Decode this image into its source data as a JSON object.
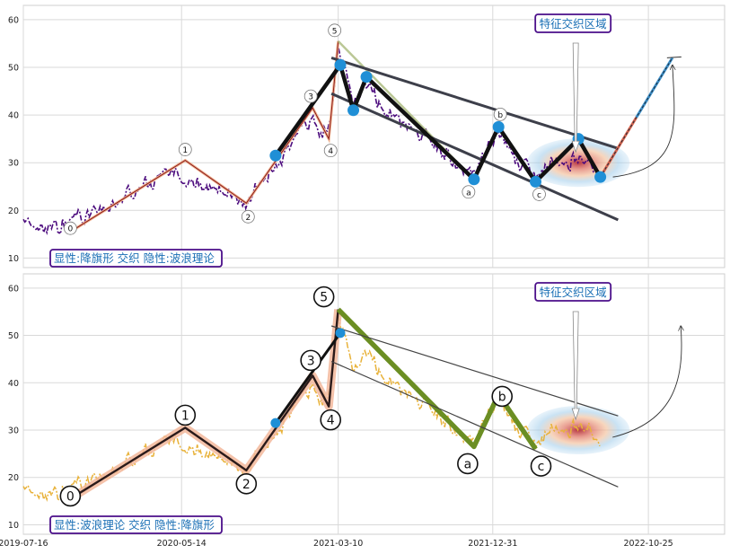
{
  "chart_data": [
    {
      "type": "line",
      "xlim": [
        "2019-07-16",
        "2023-03-20"
      ],
      "ylim": [
        8,
        63
      ],
      "yticks": [
        10,
        20,
        30,
        40,
        50,
        60
      ],
      "grid": true,
      "annotation_text": "显性:降旗形 交织 隐性:波浪理论",
      "region_label": "特征交织区域",
      "wave_points": [
        {
          "label": "0",
          "x": "2019-10-14",
          "y": 15.5
        },
        {
          "label": "1",
          "x": "2020-05-21",
          "y": 30.5
        },
        {
          "label": "2",
          "x": "2020-09-15",
          "y": 21.5
        },
        {
          "label": "3",
          "x": "2021-01-20",
          "y": 41.5
        },
        {
          "label": "4",
          "x": "2021-02-20",
          "y": 35
        },
        {
          "label": "5",
          "x": "2021-03-10",
          "y": 55.5
        }
      ],
      "corrective_points": [
        {
          "label": "a",
          "x": "2021-11-25",
          "y": 26.5
        },
        {
          "label": "b",
          "x": "2022-01-11",
          "y": 37.5
        },
        {
          "label": "c",
          "x": "2022-03-23",
          "y": 26
        }
      ],
      "flag_path": [
        {
          "x": "2020-11-10",
          "y": 31.5
        },
        {
          "x": "2021-03-14",
          "y": 50.5
        },
        {
          "x": "2021-04-08",
          "y": 41
        },
        {
          "x": "2021-05-03",
          "y": 48
        },
        {
          "x": "2021-11-25",
          "y": 26.5
        },
        {
          "x": "2022-01-11",
          "y": 37.5
        },
        {
          "x": "2022-03-23",
          "y": 26
        },
        {
          "x": "2022-06-13",
          "y": 35
        },
        {
          "x": "2022-07-25",
          "y": 27
        }
      ],
      "flag_upper_line": [
        {
          "x": "2021-02-25",
          "y": 52
        },
        {
          "x": "2022-08-28",
          "y": 33
        }
      ],
      "flag_lower_line": [
        {
          "x": "2021-02-25",
          "y": 44.5
        },
        {
          "x": "2022-08-28",
          "y": 18
        }
      ],
      "breakout_line": [
        {
          "x": "2022-07-25",
          "y": 27
        },
        {
          "x": "2022-12-10",
          "y": 52
        }
      ],
      "region_center": {
        "x": "2022-06-13",
        "y": 30
      }
    },
    {
      "type": "line",
      "xlim": [
        "2019-07-16",
        "2023-03-20"
      ],
      "ylim": [
        8,
        63
      ],
      "yticks": [
        10,
        20,
        30,
        40,
        50,
        60
      ],
      "xticks": [
        "2019-07-16",
        "2020-05-14",
        "2021-03-10",
        "2021-12-31",
        "2022-10-25"
      ],
      "grid": true,
      "annotation_text": "显性:波浪理论 交织 隐性:降旗形",
      "region_label": "特征交织区域",
      "wave_points": [
        {
          "label": "0",
          "x": "2019-10-14",
          "y": 15.5
        },
        {
          "label": "1",
          "x": "2020-05-21",
          "y": 30.5
        },
        {
          "label": "2",
          "x": "2020-09-15",
          "y": 21.5
        },
        {
          "label": "3",
          "x": "2021-01-20",
          "y": 41.5
        },
        {
          "label": "4",
          "x": "2021-02-20",
          "y": 35
        },
        {
          "label": "5",
          "x": "2021-03-10",
          "y": 55.5
        }
      ],
      "corrective_points": [
        {
          "label": "a",
          "x": "2021-11-25",
          "y": 26.5
        },
        {
          "label": "b",
          "x": "2022-01-11",
          "y": 37.5
        },
        {
          "label": "c",
          "x": "2022-03-23",
          "y": 26
        }
      ],
      "flag_path": [
        {
          "x": "2020-11-10",
          "y": 31.5
        },
        {
          "x": "2021-03-14",
          "y": 50.5
        }
      ],
      "flag_upper_line": [
        {
          "x": "2021-02-25",
          "y": 52
        },
        {
          "x": "2022-08-28",
          "y": 33
        }
      ],
      "flag_lower_line": [
        {
          "x": "2021-02-25",
          "y": 44.5
        },
        {
          "x": "2022-08-28",
          "y": 18
        }
      ],
      "breakout_line": [],
      "region_center": {
        "x": "2022-06-13",
        "y": 30
      }
    }
  ]
}
